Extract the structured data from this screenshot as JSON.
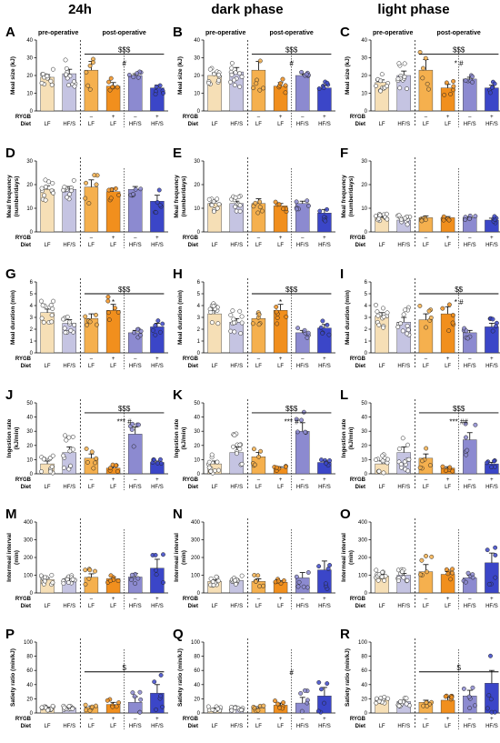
{
  "colors": {
    "LF_pre": "#f6dfb6",
    "HFS_pre": "#c5c4e2",
    "LF_sham": "#f5b04e",
    "LF_rygb": "#f18f1d",
    "HFS_sham": "#8c8ad0",
    "HFS_rygb": "#3b46c8"
  },
  "column_titles": [
    "24h",
    "dark phase",
    "light phase"
  ],
  "phase_labels": {
    "pre": "pre-operative",
    "post": "post-operative"
  },
  "row_labels": {
    "rygb": "RYGB",
    "diet": "Diet"
  },
  "groups": [
    {
      "rygb": "",
      "diet": "LF"
    },
    {
      "rygb": "",
      "diet": "HF/S"
    },
    {
      "rygb": "–",
      "diet": "LF"
    },
    {
      "rygb": "+",
      "diet": "LF"
    },
    {
      "rygb": "–",
      "diet": "HF/S"
    },
    {
      "rygb": "+",
      "diet": "HF/S"
    }
  ],
  "chart_data": [
    {
      "letter": "A",
      "type": "bar",
      "ylabel": "Meal size (kJ)",
      "ylim": [
        0,
        40
      ],
      "yticks": [
        0,
        10,
        20,
        30,
        40
      ],
      "values": [
        19,
        21,
        23,
        14,
        20,
        13
      ],
      "errors": [
        1.5,
        2.5,
        5,
        2,
        1,
        1.5
      ],
      "sig": [
        {
          "text": "$$$",
          "x1": 2,
          "x2": 5,
          "y": 32
        },
        {
          "text": "#",
          "x1": 3.5,
          "x2": 3.5,
          "y": 27
        }
      ]
    },
    {
      "letter": "B",
      "type": "bar",
      "ylabel": "Meal size (kJ)",
      "ylim": [
        0,
        40
      ],
      "yticks": [
        0,
        10,
        20,
        30,
        40
      ],
      "values": [
        20,
        22,
        23,
        14,
        20,
        13
      ],
      "errors": [
        1.5,
        2.5,
        5,
        2,
        1,
        1.5
      ],
      "sig": [
        {
          "text": "$$$",
          "x1": 2,
          "x2": 5,
          "y": 32
        },
        {
          "text": "#",
          "x1": 3.5,
          "x2": 3.5,
          "y": 27
        }
      ]
    },
    {
      "letter": "C",
      "type": "bar",
      "ylabel": "Meal size (kJ)",
      "ylim": [
        0,
        40
      ],
      "yticks": [
        0,
        10,
        20,
        30,
        40
      ],
      "values": [
        16,
        20,
        23,
        13,
        18,
        13
      ],
      "errors": [
        1.5,
        2.5,
        6,
        2,
        1,
        1.5
      ],
      "sig": [
        {
          "text": "$$$",
          "x1": 2,
          "x2": 5,
          "y": 32
        },
        {
          "text": "* #",
          "x1": 3.5,
          "x2": 3.5,
          "y": 27
        }
      ]
    },
    {
      "letter": "D",
      "type": "bar",
      "ylabel": "Meal frequency (number/days)",
      "ylim": [
        0,
        30
      ],
      "yticks": [
        0,
        10,
        20,
        30
      ],
      "values": [
        18,
        18,
        19,
        17,
        18,
        13
      ],
      "errors": [
        1.5,
        1.2,
        3,
        1.5,
        1.2,
        2.5
      ],
      "sig": []
    },
    {
      "letter": "E",
      "type": "bar",
      "ylabel": "Meal frequency (number/days)",
      "ylim": [
        0,
        30
      ],
      "yticks": [
        0,
        10,
        20,
        30
      ],
      "values": [
        12,
        12,
        12,
        11,
        12,
        8
      ],
      "errors": [
        1,
        1,
        2,
        1,
        1,
        1.5
      ],
      "sig": []
    },
    {
      "letter": "F",
      "type": "bar",
      "ylabel": "Meal frequency (number/days)",
      "ylim": [
        0,
        30
      ],
      "yticks": [
        0,
        10,
        20,
        30
      ],
      "values": [
        6,
        5,
        6,
        6,
        6,
        5
      ],
      "errors": [
        0.5,
        0.6,
        0.8,
        0.5,
        0.4,
        0.8
      ],
      "sig": []
    },
    {
      "letter": "G",
      "type": "bar",
      "ylabel": "Meal duration (min)",
      "ylim": [
        0,
        6
      ],
      "yticks": [
        0,
        1,
        2,
        3,
        4,
        5,
        6
      ],
      "values": [
        3.4,
        2.5,
        2.9,
        3.6,
        1.7,
        2.2
      ],
      "errors": [
        0.3,
        0.3,
        0.4,
        0.5,
        0.2,
        0.3
      ],
      "sig": [
        {
          "text": "$$$",
          "x1": 2,
          "x2": 5,
          "y": 5
        },
        {
          "text": "*",
          "x1": 3,
          "x2": 3,
          "y": 4.3
        }
      ]
    },
    {
      "letter": "H",
      "type": "bar",
      "ylabel": "Meal duration (min)",
      "ylim": [
        0,
        6
      ],
      "yticks": [
        0,
        1,
        2,
        3,
        4,
        5,
        6
      ],
      "values": [
        3.3,
        2.6,
        2.9,
        3.6,
        1.7,
        2.1
      ],
      "errors": [
        0.3,
        0.3,
        0.4,
        0.5,
        0.2,
        0.3
      ],
      "sig": [
        {
          "text": "$$$",
          "x1": 2,
          "x2": 5,
          "y": 5
        },
        {
          "text": "*",
          "x1": 3,
          "x2": 3,
          "y": 4.3
        }
      ]
    },
    {
      "letter": "I",
      "type": "bar",
      "ylabel": "Meal duration (min)",
      "ylim": [
        0,
        6
      ],
      "yticks": [
        0,
        1,
        2,
        3,
        4,
        5,
        6
      ],
      "values": [
        3.1,
        2.6,
        2.8,
        3.3,
        1.7,
        2.2
      ],
      "errors": [
        0.3,
        0.4,
        0.5,
        0.6,
        0.2,
        0.3
      ],
      "sig": [
        {
          "text": "$$",
          "x1": 2,
          "x2": 5,
          "y": 5
        },
        {
          "text": "* #",
          "x1": 3.5,
          "x2": 3.5,
          "y": 4.3
        }
      ]
    },
    {
      "letter": "J",
      "type": "bar",
      "ylabel": "Ingestion rate (kJ/min)",
      "ylim": [
        0,
        50
      ],
      "yticks": [
        0,
        10,
        20,
        30,
        40,
        50
      ],
      "values": [
        7,
        15,
        11,
        4,
        28,
        8
      ],
      "errors": [
        2,
        4,
        3,
        1,
        5,
        1
      ],
      "sig": [
        {
          "text": "$$$",
          "x1": 2,
          "x2": 5,
          "y": 43
        },
        {
          "text": "*** #",
          "x1": 3.5,
          "x2": 3.5,
          "y": 37
        }
      ]
    },
    {
      "letter": "K",
      "type": "bar",
      "ylabel": "Ingestion rate (kJ/min)",
      "ylim": [
        0,
        50
      ],
      "yticks": [
        0,
        10,
        20,
        30,
        40,
        50
      ],
      "values": [
        7,
        15,
        12,
        4,
        30,
        8
      ],
      "errors": [
        2,
        4,
        3,
        1,
        6,
        1
      ],
      "sig": [
        {
          "text": "$$$",
          "x1": 2,
          "x2": 5,
          "y": 43
        },
        {
          "text": "*** #",
          "x1": 3.5,
          "x2": 3.5,
          "y": 37
        }
      ]
    },
    {
      "letter": "L",
      "type": "bar",
      "ylabel": "Ingestion rate (kJ/min)",
      "ylim": [
        0,
        50
      ],
      "yticks": [
        0,
        10,
        20,
        30,
        40,
        50
      ],
      "values": [
        7,
        15,
        11,
        4,
        24,
        7
      ],
      "errors": [
        2,
        4,
        3,
        1,
        5,
        1
      ],
      "sig": [
        {
          "text": "$$$",
          "x1": 2,
          "x2": 5,
          "y": 43
        },
        {
          "text": "*** ##",
          "x1": 3.5,
          "x2": 3.5,
          "y": 37
        }
      ]
    },
    {
      "letter": "M",
      "type": "bar",
      "ylabel": "Intermeal interval (min)",
      "ylim": [
        0,
        400
      ],
      "yticks": [
        0,
        100,
        200,
        300,
        400
      ],
      "values": [
        75,
        80,
        88,
        80,
        90,
        140
      ],
      "errors": [
        8,
        8,
        20,
        10,
        20,
        50
      ],
      "sig": []
    },
    {
      "letter": "N",
      "type": "bar",
      "ylabel": "Intermeal interval (min)",
      "ylim": [
        0,
        400
      ],
      "yticks": [
        0,
        100,
        200,
        300,
        400
      ],
      "values": [
        65,
        70,
        65,
        60,
        85,
        130
      ],
      "errors": [
        8,
        8,
        15,
        10,
        30,
        50
      ],
      "sig": []
    },
    {
      "letter": "O",
      "type": "bar",
      "ylabel": "Intermeal interval (min)",
      "ylim": [
        0,
        400
      ],
      "yticks": [
        0,
        100,
        200,
        300,
        400
      ],
      "values": [
        95,
        100,
        120,
        105,
        85,
        170
      ],
      "errors": [
        10,
        10,
        40,
        15,
        15,
        55
      ],
      "sig": []
    },
    {
      "letter": "P",
      "type": "bar",
      "ylabel": "Satiety ratio (min/kJ)",
      "ylim": [
        0,
        100
      ],
      "yticks": [
        0,
        20,
        40,
        60,
        80,
        100
      ],
      "values": [
        7,
        7,
        8,
        12,
        15,
        28
      ],
      "errors": [
        1,
        1,
        2,
        3,
        8,
        12
      ],
      "sig": [
        {
          "text": "$",
          "x1": 2,
          "x2": 5,
          "y": 58
        }
      ]
    },
    {
      "letter": "Q",
      "type": "bar",
      "ylabel": "Satiety ratio (min/kJ)",
      "ylim": [
        0,
        100
      ],
      "yticks": [
        0,
        20,
        40,
        60,
        80,
        100
      ],
      "values": [
        6,
        6,
        7,
        11,
        14,
        24
      ],
      "errors": [
        1,
        1,
        2,
        3,
        8,
        12
      ],
      "sig": [
        {
          "text": "#",
          "x1": 3.5,
          "x2": 3.5,
          "y": 58
        }
      ]
    },
    {
      "letter": "R",
      "type": "bar",
      "ylabel": "Satiety ratio (min/kJ)",
      "ylim": [
        0,
        100
      ],
      "yticks": [
        0,
        20,
        40,
        60,
        80,
        100
      ],
      "values": [
        18,
        16,
        15,
        18,
        24,
        42
      ],
      "errors": [
        2,
        2,
        3,
        4,
        8,
        18
      ],
      "sig": [
        {
          "text": "$",
          "x1": 2,
          "x2": 5,
          "y": 58
        }
      ]
    }
  ]
}
